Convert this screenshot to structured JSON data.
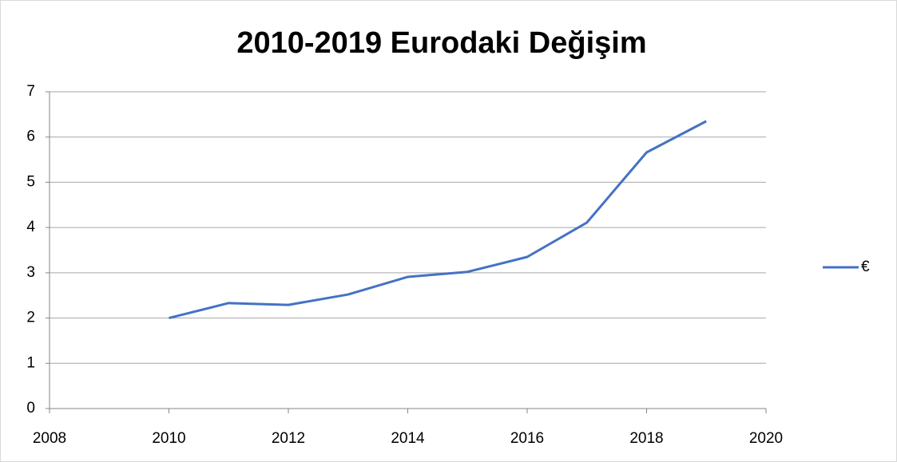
{
  "chart_data": {
    "type": "line",
    "title": "2010-2019 Eurodaki Değişim",
    "x": [
      2010,
      2011,
      2012,
      2013,
      2014,
      2015,
      2016,
      2017,
      2018,
      2019
    ],
    "series": [
      {
        "name": "€",
        "color": "#4472c4",
        "values": [
          2.0,
          2.33,
          2.29,
          2.52,
          2.91,
          3.02,
          3.35,
          4.11,
          5.66,
          6.35
        ]
      }
    ],
    "xlim": [
      2008,
      2020
    ],
    "xticks": [
      2008,
      2010,
      2012,
      2014,
      2016,
      2018,
      2020
    ],
    "ylim": [
      0,
      7
    ],
    "yticks": [
      0,
      1,
      2,
      3,
      4,
      5,
      6,
      7
    ],
    "grid": true,
    "legend": "right"
  }
}
